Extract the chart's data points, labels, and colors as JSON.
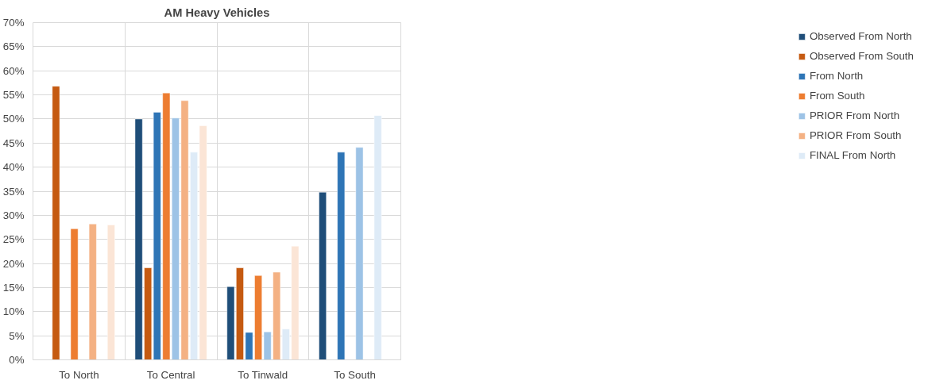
{
  "chart_data": {
    "type": "bar",
    "title": "AM Heavy Vehicles",
    "categories": [
      "To North",
      "To Central",
      "To Tinwald",
      "To South"
    ],
    "series": [
      {
        "name": "Observed From North",
        "color": "#1f4e79",
        "values": [
          null,
          50.0,
          15.2,
          34.8
        ]
      },
      {
        "name": "Observed From South",
        "color": "#c55a11",
        "values": [
          56.8,
          19.1,
          19.1,
          null
        ]
      },
      {
        "name": "From North",
        "color": "#2e75b6",
        "values": [
          null,
          51.4,
          5.7,
          43.1
        ]
      },
      {
        "name": "From South",
        "color": "#ed7d31",
        "values": [
          27.2,
          55.4,
          17.5,
          null
        ]
      },
      {
        "name": "PRIOR From North",
        "color": "#9dc3e6",
        "values": [
          null,
          50.2,
          5.8,
          44.1
        ]
      },
      {
        "name": "PRIOR From South",
        "color": "#f4b183",
        "values": [
          28.2,
          53.8,
          18.2,
          null
        ]
      },
      {
        "name": "FINAL From North",
        "color": "#deebf7",
        "values": [
          null,
          43.1,
          6.4,
          50.7
        ]
      },
      {
        "color": "#fbe5d6",
        "values": [
          28.0,
          48.6,
          23.6,
          null
        ]
      }
    ],
    "ylim": [
      0,
      70
    ],
    "yticks": [
      {
        "value": 0,
        "label": "0%"
      },
      {
        "value": 5,
        "label": "5%"
      },
      {
        "value": 10,
        "label": "10%"
      },
      {
        "value": 15,
        "label": "15%"
      },
      {
        "value": 20,
        "label": "20%"
      },
      {
        "value": 25,
        "label": "25%"
      },
      {
        "value": 30,
        "label": "30%"
      },
      {
        "value": 35,
        "label": "35%"
      },
      {
        "value": 40,
        "label": "40%"
      },
      {
        "value": 45,
        "label": "45%"
      },
      {
        "value": 50,
        "label": "50%"
      },
      {
        "value": 55,
        "label": "55%"
      },
      {
        "value": 60,
        "label": "60%"
      },
      {
        "value": 65,
        "label": "65%"
      },
      {
        "value": 70,
        "label": "70%"
      }
    ],
    "grid": true,
    "legend": "right"
  }
}
